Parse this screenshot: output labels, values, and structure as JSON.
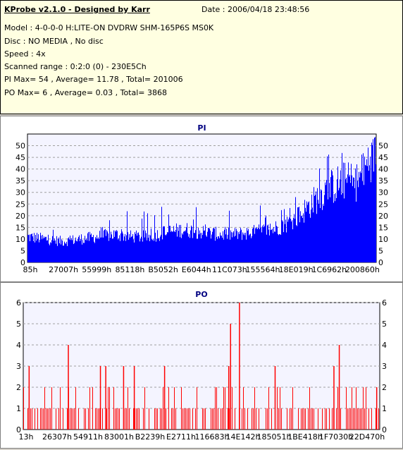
{
  "header": {
    "title": "KProbe v2.1.0 - Designed by Karr",
    "date": "Date : 2006/04/18 23:48:56",
    "lines": [
      "Model : 4-0-0-0 H:LITE-ON DVDRW SHM-165P6S MS0K",
      "Disc : NO MEDIA , No disc",
      "Speed : 4x",
      "Scanned range : 0:2:0 (0) - 230E5Ch",
      "PI Max= 54 , Average= 11.78 , Total= 201006",
      "PO Max= 6 , Average= 0.03 , Total= 3868"
    ]
  },
  "colors": {
    "pi": "#0000ff",
    "po": "#ff0000",
    "title": "#000080",
    "grid": "#a0a0a0"
  },
  "chart_data": [
    {
      "type": "bar",
      "title": "PI",
      "ylim": [
        0,
        55
      ],
      "yticks": [
        0,
        5,
        10,
        15,
        20,
        25,
        30,
        35,
        40,
        45,
        50
      ],
      "x_tick_labels": [
        "85h",
        "27007h",
        "55999h",
        "85118h",
        "B5052h",
        "E6044h",
        "11C073h",
        "155564h",
        "18E019h",
        "1C6962h",
        "200860h"
      ],
      "grid": true,
      "series": [
        {
          "profile_x": [
            0.0,
            0.05,
            0.1,
            0.15,
            0.2,
            0.25,
            0.3,
            0.35,
            0.4,
            0.45,
            0.5,
            0.55,
            0.6,
            0.65,
            0.7,
            0.75,
            0.78,
            0.82,
            0.85,
            0.88,
            0.91,
            0.94,
            0.96,
            0.98,
            1.0
          ],
          "profile_avg": [
            11,
            10,
            9,
            10,
            11,
            12,
            11,
            11,
            13,
            14,
            13,
            12,
            12,
            13,
            14,
            17,
            20,
            26,
            30,
            33,
            35,
            34,
            37,
            44,
            50
          ],
          "profile_max": [
            20,
            18,
            17,
            18,
            20,
            22,
            22,
            23,
            26,
            29,
            24,
            22,
            23,
            24,
            26,
            28,
            33,
            40,
            46,
            50,
            51,
            44,
            47,
            51,
            54
          ]
        }
      ]
    },
    {
      "type": "bar",
      "title": "PO",
      "ylim": [
        0,
        6
      ],
      "yticks": [
        0,
        1,
        2,
        3,
        4,
        5,
        6
      ],
      "x_tick_labels": [
        "13h",
        "26307h",
        "54911h",
        "83001h",
        "B2239h",
        "E2711h",
        "116683h",
        "14E142h",
        "185051h",
        "1BE418h",
        "1F7030h",
        "22D470h"
      ],
      "grid": true,
      "spikes": [
        {
          "x": 0.015,
          "y": 3
        },
        {
          "x": 0.125,
          "y": 4
        },
        {
          "x": 0.215,
          "y": 3
        },
        {
          "x": 0.23,
          "y": 3
        },
        {
          "x": 0.28,
          "y": 3
        },
        {
          "x": 0.31,
          "y": 3
        },
        {
          "x": 0.395,
          "y": 3
        },
        {
          "x": 0.575,
          "y": 3
        },
        {
          "x": 0.58,
          "y": 5
        },
        {
          "x": 0.605,
          "y": 6
        },
        {
          "x": 0.705,
          "y": 3
        },
        {
          "x": 0.87,
          "y": 3
        },
        {
          "x": 0.885,
          "y": 4
        },
        {
          "x": 0.99,
          "y": 2
        }
      ]
    }
  ]
}
